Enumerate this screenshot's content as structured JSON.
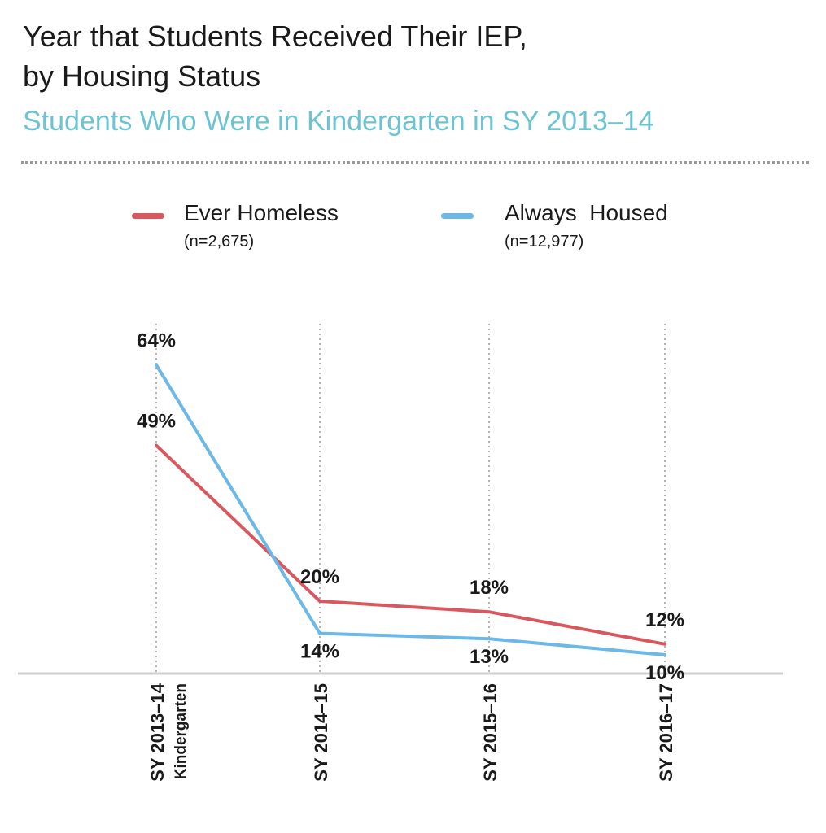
{
  "header": {
    "title_line1": "Year that Students Received Their IEP,",
    "title_line2": "by Housing Status",
    "subtitle": "Students Who Were in Kindergarten in SY 2013–14"
  },
  "legend": [
    {
      "label": "Ever Homeless",
      "n": "(n=2,675)",
      "color": "#d9585f"
    },
    {
      "label": "Always  Housed",
      "n": "(n=12,977)",
      "color": "#6cb8e6"
    }
  ],
  "chart_data": {
    "type": "line",
    "title": "Year that Students Received Their IEP, by Housing Status",
    "subtitle": "Students Who Were in Kindergarten in SY 2013–14",
    "categories": [
      {
        "line1": "SY 2013–14",
        "line2": "Kindergarten"
      },
      {
        "line1": "SY 2014–15",
        "line2": ""
      },
      {
        "line1": "SY 2015–16",
        "line2": ""
      },
      {
        "line1": "SY 2016–17",
        "line2": ""
      }
    ],
    "series": [
      {
        "name": "Ever Homeless",
        "values": [
          49,
          20,
          18,
          12
        ],
        "labels": [
          "49%",
          "20%",
          "18%",
          "12%"
        ],
        "label_side": [
          "above",
          "above",
          "above",
          "above"
        ],
        "color": "#d9585f"
      },
      {
        "name": "Always Housed",
        "values": [
          64,
          14,
          13,
          10
        ],
        "labels": [
          "64%",
          "14%",
          "13%",
          "10%"
        ],
        "label_side": [
          "above",
          "below",
          "below",
          "below"
        ],
        "color": "#6cb8e6"
      }
    ],
    "ylim": [
      0,
      100
    ],
    "xlabel": "",
    "ylabel": "",
    "grid": "vertical-dotted"
  }
}
